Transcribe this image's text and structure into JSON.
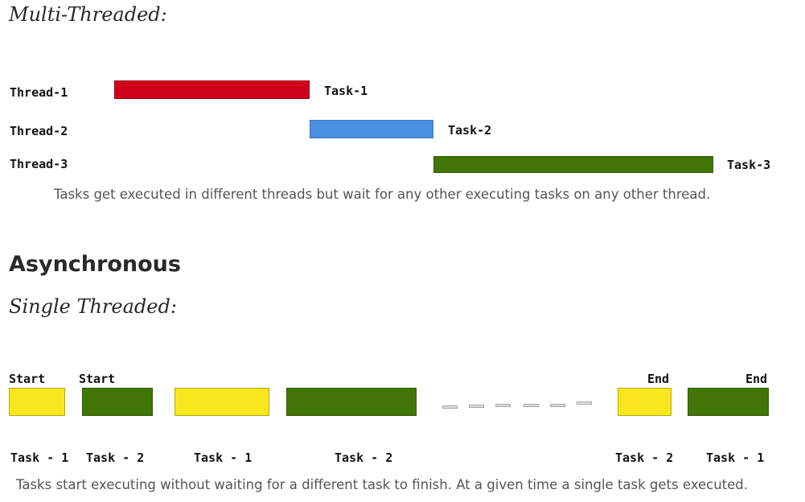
{
  "colors": {
    "red": "#d0021b",
    "blue": "#4a90e2",
    "green": "#417505",
    "yellow": "#f8e71c"
  },
  "multi": {
    "heading": "Multi-Threaded:",
    "threads": [
      {
        "label": "Thread-1",
        "task": "Task-1"
      },
      {
        "label": "Thread-2",
        "task": "Task-2"
      },
      {
        "label": "Thread-3",
        "task": "Task-3"
      }
    ],
    "caption": "Tasks get executed in different threads but wait for any other executing tasks on any other thread."
  },
  "async": {
    "heading": "Asynchronous",
    "subheading": "Single Threaded:",
    "start_labels": [
      "Start",
      "Start"
    ],
    "end_labels": [
      "End",
      "End"
    ],
    "task_labels": [
      "Task - 1",
      "Task - 2",
      "Task - 1",
      "Task - 2",
      "Task - 2",
      "Task - 1"
    ],
    "caption": "Tasks start executing without waiting for a different task to finish. At a given time a single task gets executed."
  }
}
